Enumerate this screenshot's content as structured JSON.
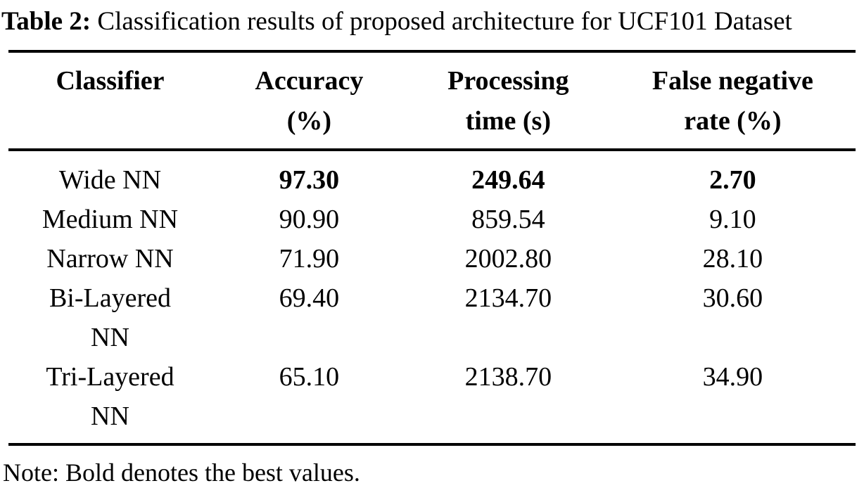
{
  "title": {
    "prefix": "Table 2:",
    "text": " Classification results of proposed architecture for UCF101 Dataset"
  },
  "table": {
    "columns": [
      {
        "line1": "Classifier",
        "line2": ""
      },
      {
        "line1": "Accuracy",
        "line2": "(%)"
      },
      {
        "line1": "Processing",
        "line2": "time (s)"
      },
      {
        "line1": "False negative",
        "line2": "rate (%)"
      }
    ],
    "rows": [
      {
        "classifier": "Wide NN",
        "accuracy": "97.30",
        "time": "249.64",
        "fnr": "2.70",
        "best": true
      },
      {
        "classifier": "Medium NN",
        "accuracy": "90.90",
        "time": "859.54",
        "fnr": "9.10",
        "best": false
      },
      {
        "classifier": "Narrow NN",
        "accuracy": "71.90",
        "time": "2002.80",
        "fnr": "28.10",
        "best": false
      },
      {
        "classifier": "Bi-Layered NN",
        "accuracy": "69.40",
        "time": "2134.70",
        "fnr": "30.60",
        "best": false
      },
      {
        "classifier": "Tri-Layered NN",
        "accuracy": "65.10",
        "time": "2138.70",
        "fnr": "34.90",
        "best": false
      }
    ]
  },
  "note": "Note: Bold denotes the best values.",
  "colors": {
    "text": "#000000",
    "background": "#ffffff",
    "rule": "#000000"
  }
}
